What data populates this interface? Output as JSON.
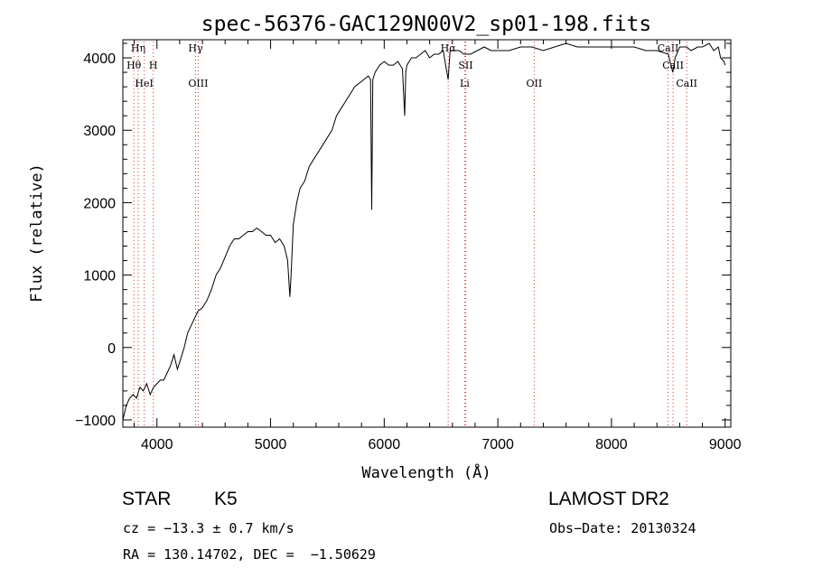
{
  "chart_data": {
    "type": "line",
    "title": "spec-56376-GAC129N00V2_sp01-198.fits",
    "xlabel": "Wavelength (Å)",
    "ylabel": "Flux (relative)",
    "xlim": [
      3700,
      9050
    ],
    "ylim": [
      -1100,
      4250
    ],
    "xticks": [
      "4000",
      "5000",
      "6000",
      "7000",
      "8000",
      "9000"
    ],
    "yticks": [
      "−1000",
      "0",
      "1000",
      "2000",
      "3000",
      "4000"
    ],
    "grid": false,
    "series": [
      {
        "x": [
          3700,
          3730,
          3760,
          3790,
          3820,
          3850,
          3880,
          3910,
          3940,
          3970,
          4000,
          4030,
          4060,
          4090,
          4120,
          4150,
          4180,
          4210,
          4240,
          4270,
          4300,
          4330,
          4360,
          4400,
          4440,
          4480,
          4520,
          4560,
          4600,
          4640,
          4680,
          4720,
          4760,
          4800,
          4840,
          4880,
          4920,
          4960,
          5000,
          5040,
          5080,
          5120,
          5150,
          5170,
          5180,
          5200,
          5230,
          5260,
          5300,
          5340,
          5380,
          5420,
          5460,
          5500,
          5540,
          5580,
          5620,
          5660,
          5700,
          5740,
          5780,
          5820,
          5860,
          5880,
          5890,
          5900,
          5920,
          5960,
          6000,
          6040,
          6080,
          6120,
          6160,
          6180,
          6190,
          6200,
          6240,
          6280,
          6320,
          6360,
          6400,
          6440,
          6480,
          6520,
          6540,
          6563,
          6580,
          6620,
          6660,
          6700,
          6760,
          6820,
          6880,
          6940,
          7000,
          7100,
          7200,
          7300,
          7400,
          7500,
          7600,
          7700,
          7800,
          7900,
          8000,
          8100,
          8200,
          8300,
          8400,
          8500,
          8540,
          8560,
          8600,
          8660,
          8700,
          8760,
          8800,
          8860,
          8900,
          8940,
          8960,
          8990,
          9000
        ],
        "y": [
          -1000,
          -800,
          -700,
          -650,
          -700,
          -550,
          -600,
          -500,
          -650,
          -550,
          -500,
          -450,
          -450,
          -350,
          -250,
          -100,
          -300,
          -150,
          0,
          200,
          300,
          400,
          500,
          550,
          650,
          800,
          1000,
          1100,
          1250,
          1400,
          1500,
          1500,
          1550,
          1600,
          1600,
          1650,
          1600,
          1550,
          1550,
          1450,
          1500,
          1400,
          1200,
          700,
          1000,
          1700,
          2000,
          2200,
          2300,
          2500,
          2600,
          2700,
          2800,
          2900,
          3000,
          3200,
          3300,
          3400,
          3500,
          3600,
          3650,
          3700,
          3750,
          3700,
          1900,
          3700,
          3800,
          3900,
          3950,
          3900,
          3900,
          3950,
          3850,
          3200,
          3800,
          3900,
          4000,
          4000,
          4050,
          4100,
          4000,
          4050,
          4050,
          4100,
          3900,
          3700,
          4100,
          4100,
          4100,
          4050,
          4050,
          4100,
          4150,
          4100,
          4100,
          4100,
          4150,
          4150,
          4100,
          4150,
          4200,
          4150,
          4150,
          4150,
          4150,
          4150,
          4150,
          4100,
          4100,
          4050,
          3800,
          4000,
          4150,
          4150,
          4100,
          4150,
          4150,
          4200,
          4100,
          4150,
          4000,
          3950,
          3900
        ]
      }
    ],
    "lines": [
      {
        "name": "Hη",
        "wave": 3835
      },
      {
        "name": "Hθ",
        "wave": 3797
      },
      {
        "name": "HeI",
        "wave": 3888
      },
      {
        "name": "H",
        "wave": 3968
      },
      {
        "name": "Hγ",
        "wave": 4340
      },
      {
        "name": "OIII",
        "wave": 4363
      },
      {
        "name": "Hα",
        "wave": 6563
      },
      {
        "name": "SII",
        "wave": 6717
      },
      {
        "name": "Li",
        "wave": 6708
      },
      {
        "name": "OII",
        "wave": 7320
      },
      {
        "name": "CaII",
        "wave": 8498
      },
      {
        "name": "CaII",
        "wave": 8542
      },
      {
        "name": "CaII",
        "wave": 8662
      }
    ]
  },
  "footer": {
    "object_class": "STAR",
    "subclass": "K5",
    "survey": "LAMOST DR2",
    "cz": "cz = −13.3 ± 0.7 km/s",
    "obs_date": "Obs−Date: 20130324",
    "coords": "RA = 130.14702, DEC =  −1.50629"
  }
}
